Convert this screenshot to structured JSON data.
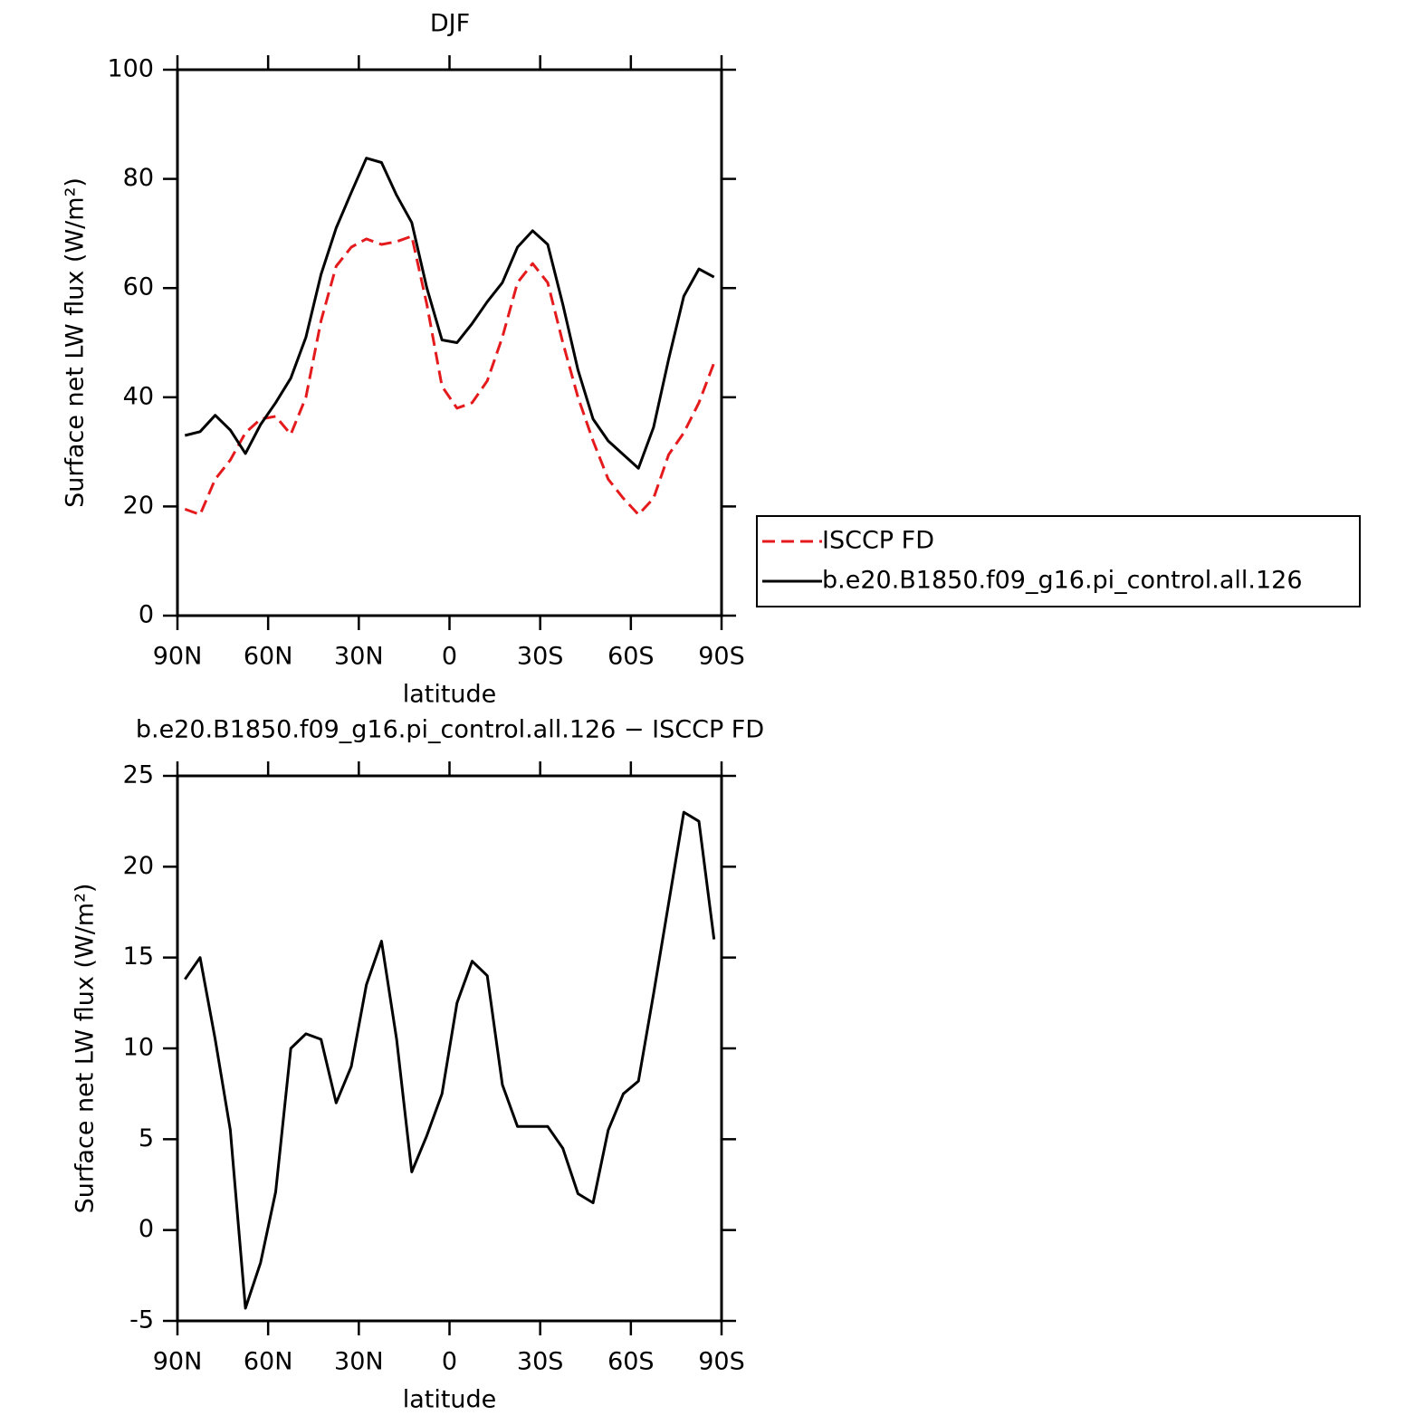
{
  "chart_data": [
    {
      "type": "line",
      "title": "DJF",
      "xlabel": "latitude",
      "ylabel": "Surface net LW flux (W/m²)",
      "x": [
        87.5,
        82.5,
        77.5,
        72.5,
        67.5,
        62.5,
        57.5,
        52.5,
        47.5,
        42.5,
        37.5,
        32.5,
        27.5,
        22.5,
        17.5,
        12.5,
        7.5,
        2.5,
        -2.5,
        -7.5,
        -12.5,
        -17.5,
        -22.5,
        -27.5,
        -32.5,
        -37.5,
        -42.5,
        -47.5,
        -52.5,
        -57.5,
        -62.5,
        -67.5,
        -72.5,
        -77.5,
        -82.5,
        -87.5
      ],
      "series": [
        {
          "name": "ISCCP FD",
          "color": "#e41a1c",
          "dash": true,
          "values": [
            19.5,
            18.5,
            25,
            28.5,
            33.5,
            36,
            36.5,
            33.2,
            40,
            54,
            64,
            67.5,
            69,
            68,
            68.5,
            69.5,
            57,
            42,
            38,
            39,
            43,
            51,
            61,
            64.5,
            61,
            50,
            40,
            32,
            25,
            21.5,
            18.5,
            21.5,
            29.5,
            33.5,
            39,
            46.3
          ]
        },
        {
          "name": "b.e20.B1850.f09_g16.pi_control.all.126",
          "color": "#000000",
          "dash": false,
          "values": [
            33,
            33.7,
            36.7,
            34,
            29.7,
            35,
            39,
            43.5,
            51,
            62.5,
            71,
            77.5,
            83.8,
            83,
            77,
            72,
            60,
            50.5,
            50,
            53.5,
            57.5,
            61,
            67.5,
            70.5,
            68,
            57,
            45,
            36,
            32,
            29.5,
            27,
            34.5,
            47,
            58.5,
            63.5,
            62
          ]
        }
      ],
      "xlim": [
        90,
        -90
      ],
      "xticks": [
        {
          "value": 90,
          "label": "90N"
        },
        {
          "value": 60,
          "label": "60N"
        },
        {
          "value": 30,
          "label": "30N"
        },
        0,
        {
          "value": -30,
          "label": "30S"
        },
        {
          "value": -60,
          "label": "60S"
        },
        {
          "value": -90,
          "label": "90S"
        }
      ],
      "ylim": [
        0,
        100
      ],
      "yticks": [
        0,
        20,
        40,
        60,
        80,
        100
      ],
      "legend": "right"
    },
    {
      "type": "line",
      "title": "b.e20.B1850.f09_g16.pi_control.all.126 − ISCCP FD",
      "xlabel": "latitude",
      "ylabel": "Surface net LW flux (W/m²)",
      "x": [
        87.5,
        82.5,
        77.5,
        72.5,
        67.5,
        62.5,
        57.5,
        52.5,
        47.5,
        42.5,
        37.5,
        32.5,
        27.5,
        22.5,
        17.5,
        12.5,
        7.5,
        2.5,
        -2.5,
        -7.5,
        -12.5,
        -17.5,
        -22.5,
        -27.5,
        -32.5,
        -37.5,
        -42.5,
        -47.5,
        -52.5,
        -57.5,
        -62.5,
        -67.5,
        -72.5,
        -77.5,
        -82.5,
        -87.5
      ],
      "values": [
        13.8,
        15,
        10.5,
        5.5,
        -4.3,
        -1.8,
        2.1,
        10,
        10.8,
        10.5,
        7,
        9,
        13.5,
        15.9,
        10.5,
        3.2,
        5.2,
        7.5,
        12.5,
        14.8,
        14,
        8,
        5.7,
        5.7,
        5.7,
        4.5,
        2,
        1.5,
        5.5,
        7.5,
        8.2,
        13,
        18,
        23,
        22.5,
        16
      ],
      "color": "#000000",
      "xlim": [
        90,
        -90
      ],
      "xticks": [
        {
          "value": 90,
          "label": "90N"
        },
        {
          "value": 60,
          "label": "60N"
        },
        {
          "value": 30,
          "label": "30N"
        },
        0,
        {
          "value": -30,
          "label": "30S"
        },
        {
          "value": -60,
          "label": "60S"
        },
        {
          "value": -90,
          "label": "90S"
        }
      ],
      "ylim": [
        -5,
        25
      ],
      "yticks": [
        -5,
        0,
        5,
        10,
        15,
        20,
        25
      ]
    }
  ]
}
